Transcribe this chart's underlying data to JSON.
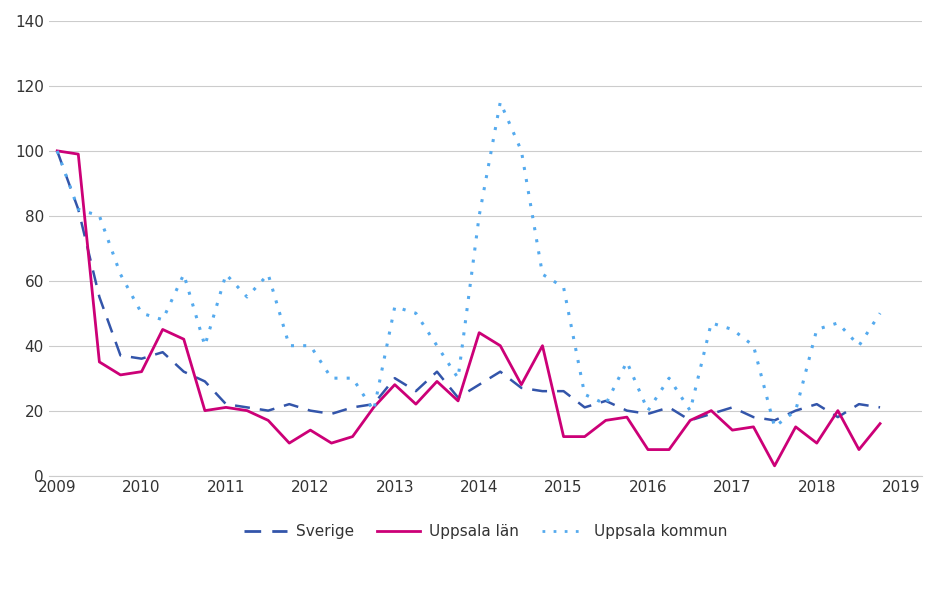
{
  "background_color": "#ffffff",
  "plot_bg_color": "#ffffff",
  "grid_color": "#cccccc",
  "text_color": "#333333",
  "ylim": [
    0,
    140
  ],
  "yticks": [
    0,
    20,
    40,
    60,
    80,
    100,
    120,
    140
  ],
  "xtick_labels": [
    "2009",
    "2010",
    "2011",
    "2012",
    "2013",
    "2014",
    "2015",
    "2016",
    "2017",
    "2018",
    "2019"
  ],
  "xtick_positions": [
    2009,
    2010,
    2011,
    2012,
    2013,
    2014,
    2015,
    2016,
    2017,
    2018,
    2019
  ],
  "legend_labels": [
    "Sverige",
    "Uppsala län",
    "Uppsala kommun"
  ],
  "legend_colors": [
    "#3355aa",
    "#cc0077",
    "#55aaee"
  ],
  "legend_styles": [
    "dashed",
    "solid",
    "dotted"
  ],
  "sverige": [
    100,
    82,
    55,
    37,
    36,
    38,
    32,
    29,
    22,
    21,
    20,
    22,
    20,
    19,
    21,
    22,
    30,
    26,
    32,
    24,
    28,
    32,
    27,
    26,
    26,
    21,
    23,
    20,
    19,
    21,
    17,
    19,
    21,
    18,
    17,
    20,
    22,
    18,
    22,
    21
  ],
  "uppsala_lan": [
    100,
    99,
    35,
    31,
    32,
    45,
    42,
    20,
    21,
    20,
    17,
    10,
    14,
    10,
    12,
    21,
    28,
    22,
    29,
    23,
    44,
    40,
    28,
    40,
    12,
    12,
    17,
    18,
    8,
    8,
    17,
    20,
    14,
    15,
    3,
    15,
    10,
    20,
    8,
    16
  ],
  "uppsala_kommun": [
    100,
    82,
    80,
    62,
    50,
    48,
    62,
    40,
    62,
    55,
    62,
    40,
    40,
    30,
    30,
    20,
    52,
    50,
    40,
    30,
    80,
    115,
    100,
    62,
    58,
    25,
    22,
    35,
    20,
    30,
    20,
    47,
    45,
    40,
    15,
    20,
    45,
    47,
    40,
    50
  ]
}
